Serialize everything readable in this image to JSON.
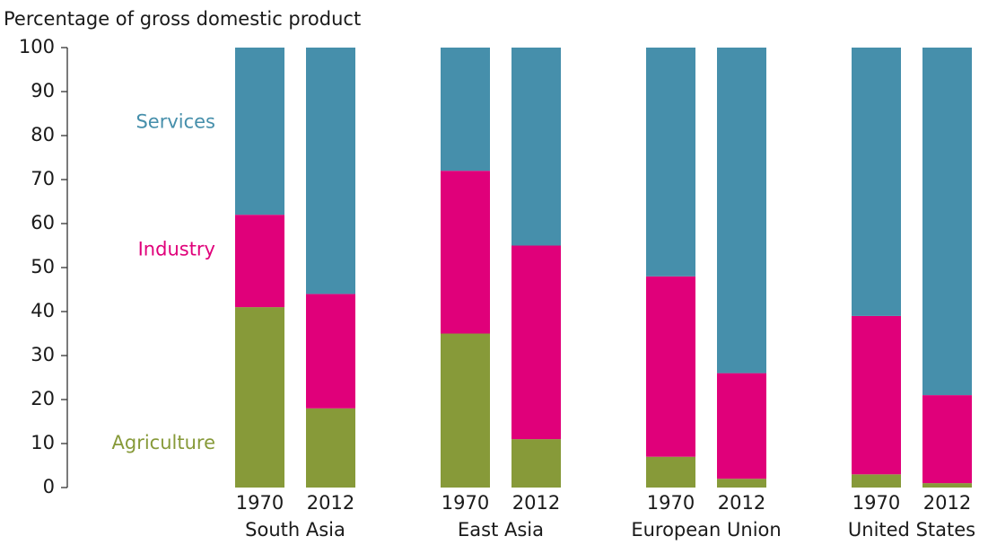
{
  "chart_data": {
    "type": "stacked_bar",
    "y_axis_label": "Percentage of gross domestic product",
    "categories": [
      "1970",
      "2012",
      "1970",
      "2012",
      "1970",
      "2012",
      "1970",
      "2012"
    ],
    "groups": [
      "South Asia",
      "East Asia",
      "European Union",
      "United States"
    ],
    "series": [
      {
        "name": "Agriculture",
        "color": "#879a39",
        "values": [
          41,
          18,
          35,
          11,
          7,
          2,
          3,
          1
        ]
      },
      {
        "name": "Industry",
        "color": "#e0007a",
        "values": [
          21,
          26,
          37,
          44,
          41,
          24,
          36,
          20
        ]
      },
      {
        "name": "Services",
        "color": "#468fab",
        "values": [
          38,
          56,
          28,
          45,
          52,
          74,
          61,
          79
        ]
      }
    ],
    "ylim": [
      0,
      100
    ],
    "yticks": [
      0,
      10,
      20,
      30,
      40,
      50,
      60,
      70,
      80,
      90,
      100
    ],
    "grid": false
  }
}
